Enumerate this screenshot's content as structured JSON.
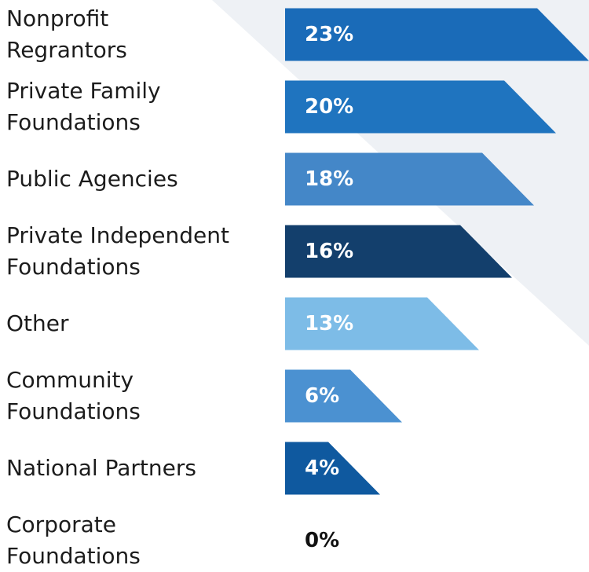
{
  "chart_data": {
    "type": "bar",
    "orientation": "horizontal",
    "categories": [
      "Nonprofit\nRegrantors",
      "Private Family\nFoundations",
      "Public Agencies",
      "Private Independent\nFoundations",
      "Other",
      "Community\nFoundations",
      "National Partners",
      "Corporate\nFoundations"
    ],
    "values": [
      23,
      20,
      18,
      16,
      13,
      6,
      4,
      0
    ],
    "value_labels": [
      "23%",
      "20%",
      "18%",
      "16%",
      "13%",
      "6%",
      "4%",
      "0%"
    ],
    "colors": [
      "#1a6bb8",
      "#1f74bf",
      "#4487c8",
      "#133f6c",
      "#7dbce7",
      "#4b91d1",
      "#0f599f",
      "#0f599f"
    ]
  }
}
